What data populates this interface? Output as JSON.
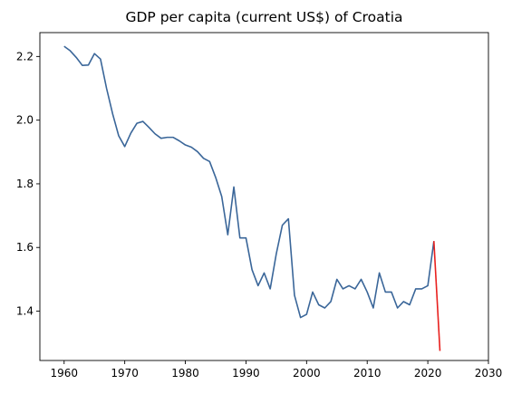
{
  "chart_data": {
    "type": "line",
    "title": "GDP per capita (current US$) of Croatia",
    "xlabel": "",
    "ylabel": "",
    "xlim": [
      1956,
      2030
    ],
    "ylim": [
      1.245,
      2.275
    ],
    "xticks": [
      1960,
      1970,
      1980,
      1990,
      2000,
      2010,
      2020,
      2030
    ],
    "xtick_labels": [
      "1960",
      "1970",
      "1980",
      "1990",
      "2000",
      "2010",
      "2020",
      "2030"
    ],
    "yticks": [
      1.4,
      1.6,
      1.8,
      2.0,
      2.2
    ],
    "ytick_labels": [
      "1.4",
      "1.6",
      "1.8",
      "2.0",
      "2.2"
    ],
    "grid": false,
    "series": [
      {
        "color": "#3a6699",
        "x": [
          1960,
          1961,
          1962,
          1963,
          1964,
          1965,
          1966,
          1967,
          1968,
          1969,
          1970,
          1971,
          1972,
          1973,
          1974,
          1975,
          1976,
          1977,
          1978,
          1979,
          1980,
          1981,
          1982,
          1983,
          1984,
          1985,
          1986,
          1987,
          1988,
          1989,
          1990,
          1991,
          1992,
          1993,
          1994,
          1995,
          1996,
          1997,
          1998,
          1999,
          2000,
          2001,
          2002,
          2003,
          2004,
          2005,
          2006,
          2007,
          2008,
          2009,
          2010,
          2011,
          2012,
          2013,
          2014,
          2015,
          2016,
          2017,
          2018,
          2019,
          2020,
          2021
        ],
        "y": [
          2.232,
          2.218,
          2.197,
          2.172,
          2.173,
          2.209,
          2.192,
          2.1,
          2.02,
          1.951,
          1.917,
          1.959,
          1.99,
          1.996,
          1.977,
          1.957,
          1.943,
          1.946,
          1.946,
          1.935,
          1.922,
          1.915,
          1.901,
          1.88,
          1.87,
          1.82,
          1.76,
          1.64,
          1.79,
          1.63,
          1.63,
          1.53,
          1.48,
          1.52,
          1.47,
          1.58,
          1.67,
          1.69,
          1.45,
          1.38,
          1.39,
          1.46,
          1.42,
          1.41,
          1.43,
          1.5,
          1.47,
          1.48,
          1.47,
          1.5,
          1.46,
          1.41,
          1.52,
          1.46,
          1.46,
          1.41,
          1.43,
          1.42,
          1.47,
          1.47,
          1.48,
          1.62
        ]
      },
      {
        "color": "#e8201e",
        "x": [
          2021,
          2022
        ],
        "y": [
          1.62,
          1.275
        ]
      }
    ]
  }
}
